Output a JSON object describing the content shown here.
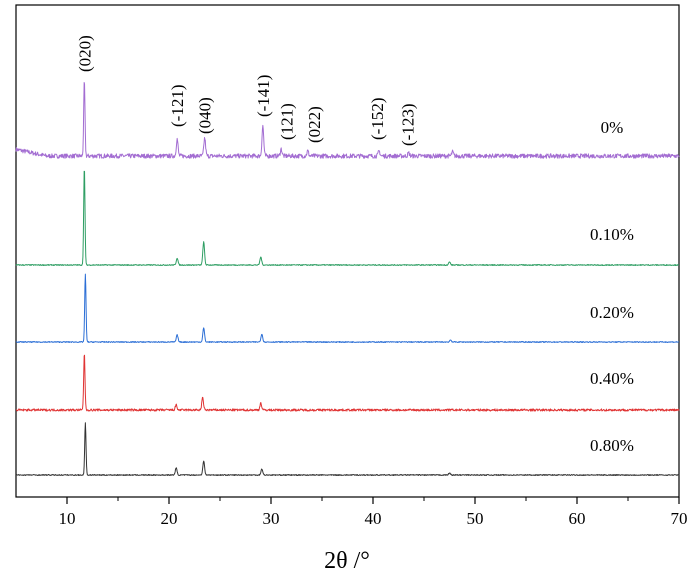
{
  "chart_data": {
    "type": "line",
    "title": "",
    "xlabel": "2θ /°",
    "ylabel": "",
    "xlim": [
      5,
      70
    ],
    "xticks": [
      10,
      20,
      30,
      40,
      50,
      60,
      70
    ],
    "xtick_labels": [
      "10",
      "20",
      "30",
      "40",
      "50",
      "60",
      "70"
    ],
    "grid": false,
    "legend": "inline labels at right",
    "series": [
      {
        "name": "0%",
        "color": "#a36dd2",
        "peaks": [
          {
            "x": 11.7,
            "h": 75
          },
          {
            "x": 20.8,
            "h": 17
          },
          {
            "x": 23.5,
            "h": 18
          },
          {
            "x": 29.2,
            "h": 30
          },
          {
            "x": 31.0,
            "h": 7
          },
          {
            "x": 33.6,
            "h": 5
          },
          {
            "x": 40.6,
            "h": 5
          },
          {
            "x": 43.5,
            "h": 3
          },
          {
            "x": 47.8,
            "h": 4
          }
        ]
      },
      {
        "name": "0.10%",
        "color": "#2e9e63",
        "peaks": [
          {
            "x": 11.7,
            "h": 98
          },
          {
            "x": 20.8,
            "h": 7
          },
          {
            "x": 23.4,
            "h": 23
          },
          {
            "x": 29.0,
            "h": 8
          },
          {
            "x": 47.5,
            "h": 3
          }
        ]
      },
      {
        "name": "0.20%",
        "color": "#2c6fd6",
        "peaks": [
          {
            "x": 11.8,
            "h": 68
          },
          {
            "x": 20.8,
            "h": 7
          },
          {
            "x": 23.4,
            "h": 14
          },
          {
            "x": 29.1,
            "h": 8
          },
          {
            "x": 47.6,
            "h": 2
          }
        ]
      },
      {
        "name": "0.40%",
        "color": "#e03434",
        "peaks": [
          {
            "x": 11.7,
            "h": 57
          },
          {
            "x": 20.7,
            "h": 5
          },
          {
            "x": 23.3,
            "h": 12
          },
          {
            "x": 29.0,
            "h": 7
          }
        ]
      },
      {
        "name": "0.80%",
        "color": "#333333",
        "peaks": [
          {
            "x": 11.8,
            "h": 52
          },
          {
            "x": 20.7,
            "h": 7
          },
          {
            "x": 23.4,
            "h": 14
          },
          {
            "x": 29.1,
            "h": 6
          },
          {
            "x": 47.5,
            "h": 2
          }
        ]
      }
    ],
    "annotations": [
      {
        "text": "(020)",
        "x": 11.7
      },
      {
        "text": "(-121)",
        "x": 20.8
      },
      {
        "text": "(040)",
        "x": 23.5
      },
      {
        "text": "(-141)",
        "x": 29.2
      },
      {
        "text": "(121)",
        "x": 31.5
      },
      {
        "text": "(022)",
        "x": 34.2
      },
      {
        "text": "(-152)",
        "x": 40.4
      },
      {
        "text": "(-123)",
        "x": 43.4
      }
    ]
  }
}
